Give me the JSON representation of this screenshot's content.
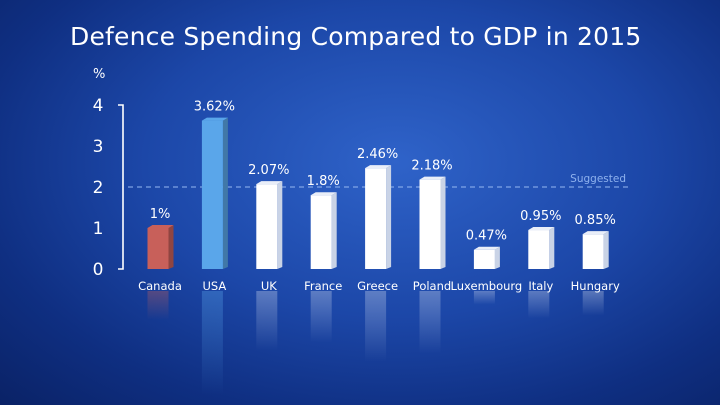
{
  "title": "Defence Spending Compared to GDP in 2015",
  "chart_data": {
    "type": "bar",
    "title": "Defence Spending Compared to GDP in 2015",
    "ylabel": "%",
    "xlabel": "",
    "ylim": [
      0,
      4
    ],
    "yticks": [
      "0",
      "1",
      "2",
      "3",
      "4"
    ],
    "categories": [
      "Canada",
      "USA",
      "UK",
      "France",
      "Greece",
      "Poland",
      "Luxembourg",
      "Italy",
      "Hungary"
    ],
    "values": [
      1.0,
      3.62,
      2.07,
      1.8,
      2.46,
      2.18,
      0.47,
      0.95,
      0.85
    ],
    "value_labels": [
      "1%",
      "3.62%",
      "2.07%",
      "1.8%",
      "2.46%",
      "2.18%",
      "0.47%",
      "0.95%",
      "0.85%"
    ],
    "reference_line": {
      "value": 2,
      "label": "Suggested"
    },
    "colors": {
      "highlight_canada": "#c8605a",
      "highlight_usa": "#5aa6ea",
      "default_bar": "#ffffff",
      "reference_line": "#8fb2ee"
    },
    "grid": false,
    "legend": "none"
  }
}
